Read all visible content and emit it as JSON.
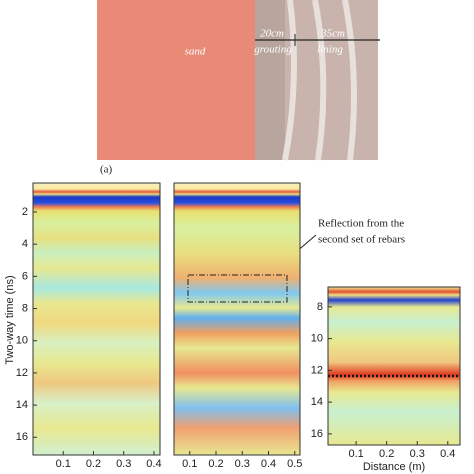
{
  "figure_label": "(a)",
  "photo": {
    "labels": [
      "sand",
      "20cm",
      "grouting",
      "35cm",
      "lining"
    ]
  },
  "annotation": [
    "Reflection from the",
    "second set of rebars"
  ],
  "y_label": "Two-way time (ns)",
  "panels": [
    {
      "xlim": [
        0,
        0.42
      ],
      "ylim": [
        0.2,
        17.1
      ],
      "xticks": [
        0.1,
        0.2,
        0.3,
        0.4
      ],
      "yticks": [
        2,
        4,
        6,
        8,
        10,
        12,
        14,
        16
      ]
    },
    {
      "xlim": [
        0.04,
        0.52
      ],
      "ylim": [
        0.2,
        17.1
      ],
      "xticks": [
        0.1,
        0.2,
        0.3,
        0.4,
        0.5
      ]
    },
    {
      "xlim": [
        0.008,
        0.44
      ],
      "ylim": [
        6.75,
        16.7
      ],
      "xticks": [
        0.1,
        0.2,
        0.3,
        0.4
      ],
      "yticks": [
        8,
        10,
        12,
        14,
        16
      ],
      "x_label": "Distance (m)"
    }
  ]
}
